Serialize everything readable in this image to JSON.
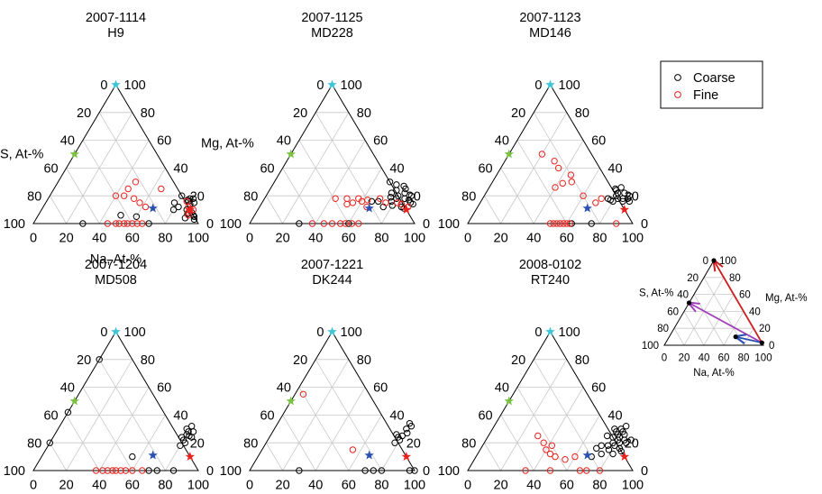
{
  "chart_data": {
    "type": "scatter",
    "subtype": "ternary",
    "axis_labels": {
      "S": "S, At-%",
      "Mg": "Mg, At-%",
      "Na": "Na, At-%"
    },
    "axis_ticks": [
      0,
      20,
      40,
      60,
      80,
      100
    ],
    "grid": true,
    "legend": {
      "placement": "top-right",
      "items": [
        {
          "name": "Coarse",
          "marker": "open-circle",
          "color": "#000000"
        },
        {
          "name": "Fine",
          "marker": "open-circle",
          "color": "#e8221d"
        }
      ]
    },
    "reference_points": [
      {
        "marker": "star",
        "color": "#40c4d8",
        "mg": 100,
        "na": 0
      },
      {
        "marker": "star",
        "color": "#7ac143",
        "mg": 50,
        "na": 0
      },
      {
        "marker": "star",
        "color": "#2a4fb0",
        "mg": 11,
        "na": 67
      },
      {
        "marker": "star",
        "color": "#e8221d",
        "mg": 10,
        "na": 90
      }
    ],
    "panels": [
      {
        "title": "2007-1114",
        "subtitle": "H9",
        "show_axis_labels": true,
        "coarse": [
          [
            0,
            30
          ],
          [
            0,
            70
          ],
          [
            5,
            60
          ],
          [
            6,
            50
          ],
          [
            10,
            80
          ],
          [
            12,
            82
          ],
          [
            14,
            88
          ],
          [
            15,
            90
          ],
          [
            15,
            78
          ],
          [
            16,
            86
          ],
          [
            17,
            85
          ],
          [
            18,
            86
          ],
          [
            18,
            88
          ],
          [
            20,
            80
          ],
          [
            10,
            88
          ],
          [
            8,
            92
          ],
          [
            6,
            94
          ],
          [
            5,
            95
          ],
          [
            3,
            96
          ],
          [
            4,
            90
          ],
          [
            7,
            90
          ]
        ],
        "fine": [
          [
            0,
            45
          ],
          [
            0,
            50
          ],
          [
            0,
            52
          ],
          [
            0,
            55
          ],
          [
            0,
            57
          ],
          [
            0,
            60
          ],
          [
            0,
            63
          ],
          [
            0,
            66
          ],
          [
            12,
            62
          ],
          [
            15,
            57
          ],
          [
            18,
            52
          ],
          [
            20,
            40
          ],
          [
            20,
            45
          ],
          [
            25,
            45
          ],
          [
            30,
            47
          ],
          [
            25,
            65
          ],
          [
            16,
            85
          ],
          [
            12,
            88
          ],
          [
            10,
            90
          ],
          [
            10,
            92
          ],
          [
            8,
            90
          ],
          [
            6,
            91
          ]
        ]
      },
      {
        "title": "2007-1125",
        "subtitle": "MD228",
        "show_axis_labels": false,
        "coarse": [
          [
            0,
            30
          ],
          [
            0,
            60
          ],
          [
            12,
            75
          ],
          [
            14,
            85
          ],
          [
            16,
            78
          ],
          [
            18,
            80
          ],
          [
            18,
            85
          ],
          [
            20,
            80
          ],
          [
            20,
            88
          ],
          [
            22,
            75
          ],
          [
            22,
            83
          ],
          [
            24,
            77
          ],
          [
            25,
            82
          ],
          [
            27,
            80
          ],
          [
            28,
            75
          ],
          [
            30,
            70
          ],
          [
            15,
            90
          ],
          [
            14,
            92
          ],
          [
            12,
            86
          ],
          [
            11,
            88
          ],
          [
            13,
            80
          ],
          [
            16,
            70
          ],
          [
            16,
            66
          ],
          [
            17,
            88
          ],
          [
            19,
            76
          ]
        ],
        "fine": [
          [
            0,
            38
          ],
          [
            0,
            45
          ],
          [
            0,
            50
          ],
          [
            0,
            55
          ],
          [
            0,
            58
          ],
          [
            0,
            62
          ],
          [
            0,
            66
          ],
          [
            12,
            65
          ],
          [
            14,
            52
          ],
          [
            15,
            55
          ],
          [
            16,
            60
          ],
          [
            17,
            63
          ],
          [
            18,
            43
          ],
          [
            18,
            50
          ],
          [
            18,
            57
          ],
          [
            15,
            82
          ],
          [
            14,
            85
          ],
          [
            12,
            90
          ],
          [
            18,
            70
          ],
          [
            15,
            75
          ]
        ]
      },
      {
        "title": "2007-1123",
        "subtitle": "MD146",
        "show_axis_labels": false,
        "coarse": [
          [
            0,
            63
          ],
          [
            0,
            75
          ],
          [
            16,
            80
          ],
          [
            17,
            78
          ],
          [
            18,
            82
          ],
          [
            18,
            85
          ],
          [
            20,
            80
          ],
          [
            22,
            80
          ],
          [
            22,
            84
          ],
          [
            24,
            78
          ],
          [
            25,
            77
          ],
          [
            26,
            80
          ],
          [
            20,
            88
          ],
          [
            18,
            88
          ],
          [
            16,
            86
          ],
          [
            16,
            90
          ],
          [
            18,
            76
          ]
        ],
        "fine": [
          [
            0,
            50
          ],
          [
            0,
            52
          ],
          [
            0,
            54
          ],
          [
            0,
            56
          ],
          [
            0,
            58
          ],
          [
            0,
            60
          ],
          [
            0,
            62
          ],
          [
            0,
            90
          ],
          [
            20,
            60
          ],
          [
            26,
            40
          ],
          [
            29,
            43
          ],
          [
            30,
            48
          ],
          [
            35,
            45
          ],
          [
            40,
            35
          ],
          [
            45,
            30
          ],
          [
            50,
            20
          ],
          [
            15,
            70
          ],
          [
            18,
            72
          ]
        ]
      },
      {
        "title": "2007-1204",
        "subtitle": "MD508",
        "show_axis_labels": false,
        "coarse": [
          [
            0,
            70
          ],
          [
            0,
            75
          ],
          [
            0,
            85
          ],
          [
            10,
            55
          ],
          [
            20,
            0
          ],
          [
            42,
            0
          ],
          [
            80,
            0
          ],
          [
            18,
            80
          ],
          [
            20,
            82
          ],
          [
            22,
            80
          ],
          [
            24,
            78
          ],
          [
            25,
            82
          ],
          [
            26,
            80
          ],
          [
            28,
            80
          ],
          [
            30,
            78
          ],
          [
            32,
            80
          ],
          [
            28,
            83
          ],
          [
            24,
            84
          ]
        ],
        "fine": [
          [
            0,
            38
          ],
          [
            0,
            42
          ],
          [
            0,
            45
          ],
          [
            0,
            48
          ],
          [
            0,
            50
          ],
          [
            0,
            53
          ],
          [
            0,
            56
          ],
          [
            0,
            60
          ],
          [
            0,
            66
          ]
        ]
      },
      {
        "title": "2007-1221",
        "subtitle": "DK244",
        "show_axis_labels": false,
        "coarse": [
          [
            0,
            30
          ],
          [
            0,
            70
          ],
          [
            0,
            75
          ],
          [
            0,
            80
          ],
          [
            0,
            97
          ],
          [
            0,
            100
          ],
          [
            20,
            78
          ],
          [
            22,
            80
          ],
          [
            24,
            78
          ],
          [
            25,
            80
          ],
          [
            27,
            82
          ],
          [
            30,
            80
          ],
          [
            32,
            82
          ],
          [
            34,
            80
          ],
          [
            26,
            76
          ]
        ],
        "fine": [
          [
            15,
            55
          ],
          [
            55,
            5
          ]
        ]
      },
      {
        "title": "2008-0102",
        "subtitle": "RT240",
        "show_axis_labels": false,
        "coarse": [
          [
            12,
            75
          ],
          [
            15,
            78
          ],
          [
            18,
            76
          ],
          [
            18,
            80
          ],
          [
            20,
            82
          ],
          [
            20,
            78
          ],
          [
            22,
            80
          ],
          [
            22,
            84
          ],
          [
            24,
            80
          ],
          [
            24,
            76
          ],
          [
            26,
            78
          ],
          [
            26,
            82
          ],
          [
            28,
            80
          ],
          [
            28,
            76
          ],
          [
            30,
            78
          ],
          [
            30,
            74
          ],
          [
            32,
            80
          ],
          [
            22,
            88
          ],
          [
            20,
            86
          ],
          [
            16,
            84
          ],
          [
            14,
            86
          ],
          [
            12,
            82
          ],
          [
            18,
            72
          ],
          [
            16,
            70
          ],
          [
            25,
            72
          ],
          [
            10,
            70
          ]
        ],
        "fine": [
          [
            0,
            35
          ],
          [
            0,
            50
          ],
          [
            0,
            68
          ],
          [
            0,
            72
          ],
          [
            0,
            80
          ],
          [
            12,
            44
          ],
          [
            15,
            40
          ],
          [
            18,
            42
          ],
          [
            20,
            36
          ],
          [
            25,
            30
          ],
          [
            8,
            55
          ],
          [
            10,
            60
          ],
          [
            10,
            48
          ]
        ]
      }
    ],
    "inset": {
      "show_axis_labels": true,
      "points": [
        {
          "mg": 100,
          "na": 0
        },
        {
          "mg": 50,
          "na": 0
        },
        {
          "mg": 10,
          "na": 67
        },
        {
          "mg": 3,
          "na": 97
        }
      ],
      "arrows": [
        {
          "color": "#cc1f1f",
          "from": {
            "mg": 3,
            "na": 97
          },
          "to": {
            "mg": 100,
            "na": 0
          }
        },
        {
          "color": "#a040b8",
          "from": {
            "mg": 3,
            "na": 97
          },
          "to": {
            "mg": 50,
            "na": 0
          }
        },
        {
          "color": "#2a4fb0",
          "from": {
            "mg": 3,
            "na": 97
          },
          "to": {
            "mg": 10,
            "na": 67
          }
        }
      ]
    }
  }
}
